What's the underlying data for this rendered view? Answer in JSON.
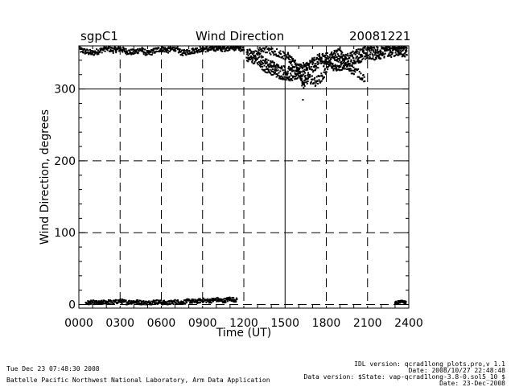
{
  "header": {
    "site": "sgpC1",
    "title": "Wind Direction",
    "date": "20081221"
  },
  "chart_data": {
    "type": "scatter",
    "title": "Wind Direction",
    "xlabel": "Time (UT)",
    "ylabel": "Wind Direction, degrees",
    "x_ticks": [
      "0000",
      "0300",
      "0600",
      "0900",
      "1200",
      "1500",
      "1800",
      "2100",
      "2400"
    ],
    "y_ticks": [
      "0",
      "100",
      "200",
      "300"
    ],
    "xlim": [
      0,
      24
    ],
    "ylim": [
      -5,
      360
    ],
    "grid": "dashed vertical every 3 h, dashed horizontal at 100 and 200, solid at 300 and 1500 UT",
    "series": [
      {
        "color": "#000000",
        "segments": [
          {
            "x": [
              0.0,
              0.5,
              1.0,
              1.5,
              2.0,
              2.5,
              3.0,
              3.5,
              4.0,
              4.5,
              5.0,
              5.5,
              6.0,
              6.5,
              7.0,
              7.5,
              8.0,
              8.5,
              9.0,
              9.5,
              10.0,
              10.5,
              11.0,
              11.5,
              12.0
            ],
            "y": [
              355,
              352,
              350,
              353,
              357,
              354,
              356,
              352,
              351,
              355,
              349,
              353,
              356,
              354,
              357,
              350,
              352,
              354,
              356,
              355,
              357,
              356,
              358,
              357,
              356
            ],
            "jitter": 4
          },
          {
            "x": [
              0.5,
              1.0,
              1.5,
              2.0,
              2.5,
              3.0,
              3.5,
              4.0,
              4.5,
              5.0,
              5.5,
              6.0,
              6.5,
              7.0,
              7.5,
              8.0,
              8.5,
              9.0,
              9.5,
              10.0,
              10.5,
              11.0,
              11.5
            ],
            "y": [
              2,
              3,
              2,
              4,
              3,
              5,
              3,
              4,
              3,
              2,
              4,
              3,
              2,
              4,
              3,
              5,
              4,
              6,
              5,
              7,
              5,
              8,
              6
            ],
            "jitter": 3
          },
          {
            "x": [
              12.2,
              12.5,
              12.8,
              13.1,
              13.4,
              13.7,
              14.0,
              14.3,
              14.6,
              14.9,
              15.2,
              15.5,
              15.8,
              16.1,
              16.4,
              16.7,
              17.0,
              17.3,
              17.6,
              17.9,
              18.2,
              18.5,
              18.8,
              19.1,
              19.4,
              19.7,
              20.0,
              20.3,
              20.6,
              20.9,
              21.2,
              21.5,
              21.8,
              22.1,
              22.4,
              22.7,
              23.0,
              23.3,
              23.6,
              23.9
            ],
            "y": [
              348,
              345,
              344,
              342,
              335,
              332,
              330,
              327,
              324,
              323,
              322,
              320,
              322,
              325,
              327,
              330,
              333,
              337,
              340,
              342,
              339,
              336,
              334,
              336,
              338,
              340,
              344,
              346,
              348,
              350,
              352,
              350,
              351,
              353,
              354,
              352,
              356,
              355,
              354,
              355
            ],
            "jitter": 10
          },
          {
            "x": [
              13.0,
              13.8,
              14.5,
              15.2,
              15.6,
              16.0,
              16.3,
              16.7,
              17.2,
              17.8,
              18.4,
              19.0,
              19.5,
              20.1,
              20.8
            ],
            "y": [
              352,
              355,
              350,
              345,
              336,
              330,
              305,
              315,
              310,
              318,
              346,
              352,
              330,
              325,
              315
            ],
            "jitter": 6
          },
          {
            "x": [
              16.3
            ],
            "y": [
              285
            ],
            "jitter": 0
          },
          {
            "x": [
              23.0,
              23.4,
              23.8
            ],
            "y": [
              2,
              4,
              3
            ],
            "jitter": 2
          }
        ]
      }
    ]
  },
  "footer": {
    "timestamp": "Tue Dec 23 07:48:30 2008",
    "org": "Battelle Pacific Northwest National Laboratory, Arm Data Application",
    "idl": "IDL version: qcrad1long_plots.pro,v 1.1",
    "idl_date": "Date: 2008/10/27 22:48:48",
    "data_version": "Data version: $State: vap-qcrad1long-3.8-0.sol5_10 $",
    "data_date": "Date: 23-Dec-2008"
  }
}
